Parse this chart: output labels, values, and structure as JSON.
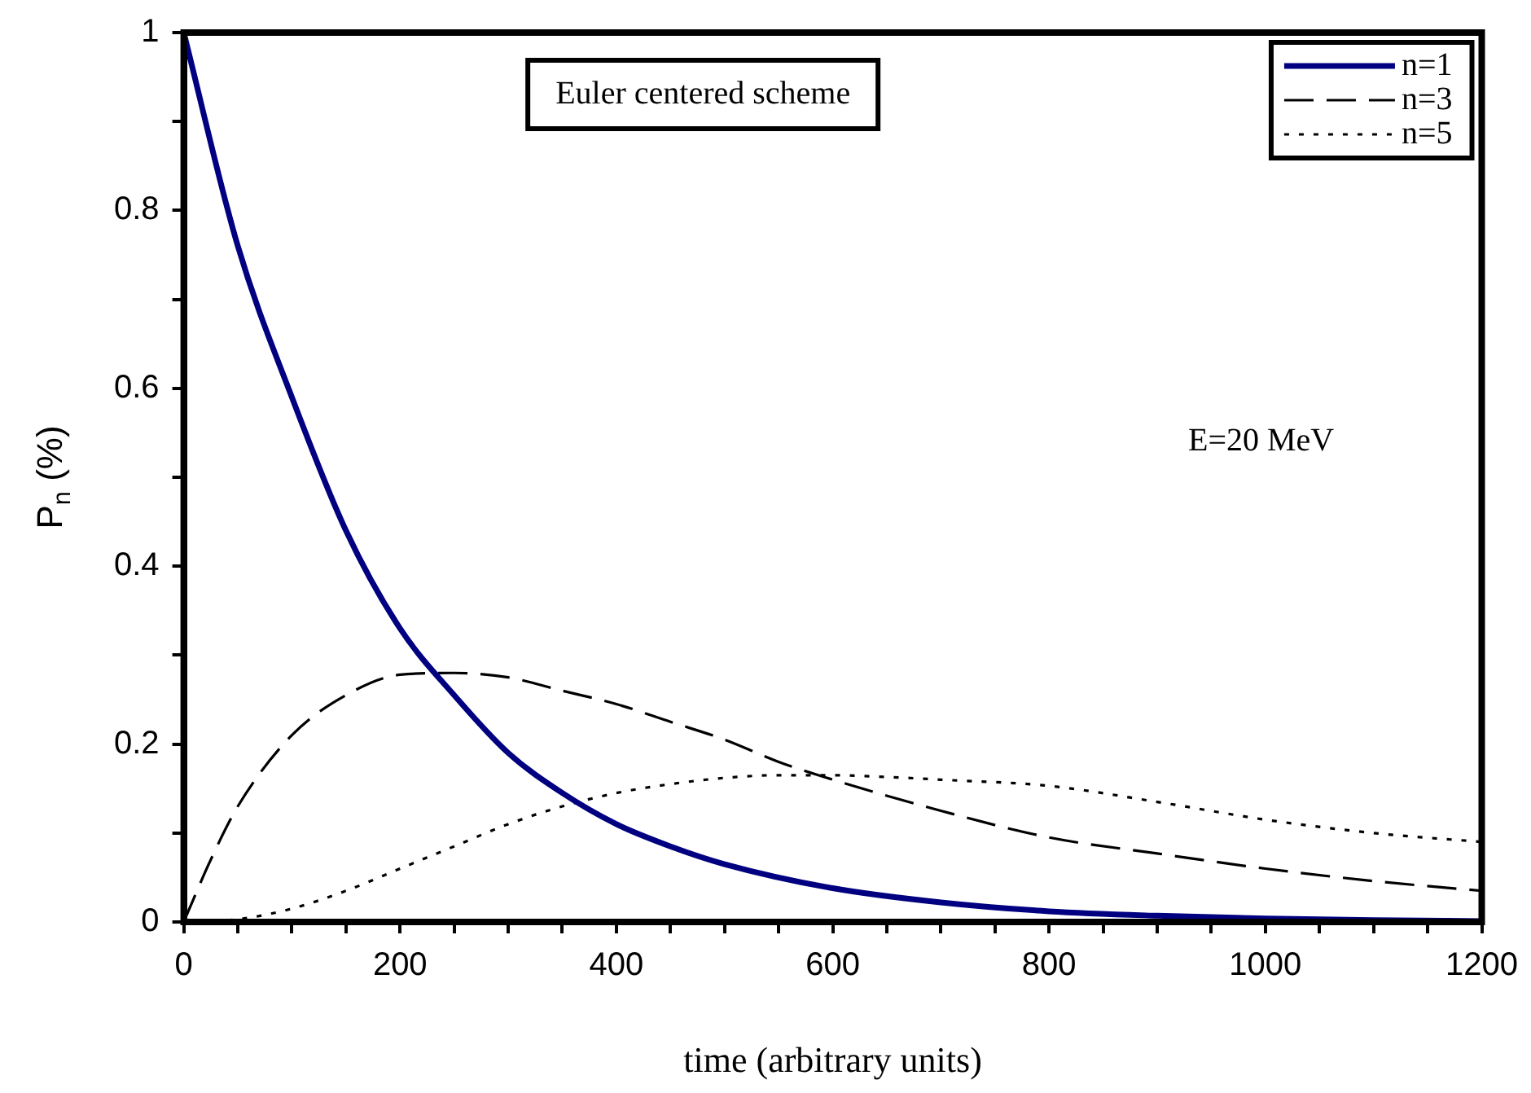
{
  "chart_data": {
    "type": "line",
    "xlabel": "time (arbitrary units)",
    "ylabel": "P$_{n}$ (%)",
    "annotations": [
      "Euler centered scheme",
      "E=20 MeV"
    ],
    "xlim": [
      0,
      1200
    ],
    "xticks": [
      0,
      {
        "value": 50,
        "label": null
      },
      {
        "value": 100,
        "label": null
      },
      {
        "value": 150,
        "label": null
      },
      200,
      {
        "value": 250,
        "label": null
      },
      {
        "value": 300,
        "label": null
      },
      {
        "value": 350,
        "label": null
      },
      400,
      {
        "value": 450,
        "label": null
      },
      {
        "value": 500,
        "label": null
      },
      {
        "value": 550,
        "label": null
      },
      600,
      {
        "value": 650,
        "label": null
      },
      {
        "value": 700,
        "label": null
      },
      {
        "value": 750,
        "label": null
      },
      800,
      {
        "value": 850,
        "label": null
      },
      {
        "value": 900,
        "label": null
      },
      {
        "value": 950,
        "label": null
      },
      1000,
      {
        "value": 1050,
        "label": null
      },
      {
        "value": 1100,
        "label": null
      },
      {
        "value": 1150,
        "label": null
      },
      1200
    ],
    "ylim": [
      0,
      1
    ],
    "yticks": [
      0,
      {
        "value": 0.1,
        "label": null
      },
      0.2,
      {
        "value": 0.3,
        "label": null
      },
      0.4,
      {
        "value": 0.5,
        "label": null
      },
      0.6,
      {
        "value": 0.7,
        "label": null
      },
      0.8,
      {
        "value": 0.9,
        "label": null
      },
      1
    ],
    "grid": false,
    "legend": "top right",
    "marker": "none",
    "series": [
      {
        "name": "n=1",
        "color": "#000080",
        "line_style": "solid",
        "x": [
          0,
          50,
          100,
          150,
          200,
          250,
          300,
          350,
          400,
          450,
          500,
          600,
          700,
          800,
          900,
          1000,
          1100,
          1200
        ],
        "values": [
          1,
          0.76,
          0.59,
          0.44,
          0.33,
          0.255,
          0.19,
          0.145,
          0.11,
          0.085,
          0.065,
          0.038,
          0.022,
          0.012,
          0.007,
          0.004,
          0.002,
          0.001
        ]
      },
      {
        "name": "n=3",
        "color": "#000000",
        "line_style": "dashed",
        "x": [
          0,
          25,
          50,
          100,
          150,
          200,
          250,
          300,
          350,
          400,
          450,
          500,
          550,
          600,
          700,
          800,
          900,
          1000,
          1100,
          1200
        ],
        "values": [
          0,
          0.07,
          0.13,
          0.21,
          0.255,
          0.278,
          0.28,
          0.275,
          0.26,
          0.245,
          0.225,
          0.205,
          0.18,
          0.16,
          0.125,
          0.095,
          0.077,
          0.06,
          0.046,
          0.035
        ]
      },
      {
        "name": "n=5",
        "color": "#000000",
        "line_style": "dotted",
        "x": [
          0,
          50,
          100,
          150,
          200,
          250,
          300,
          350,
          400,
          450,
          500,
          550,
          600,
          650,
          700,
          800,
          900,
          1000,
          1100,
          1200
        ],
        "values": [
          0,
          0.003,
          0.015,
          0.035,
          0.06,
          0.085,
          0.11,
          0.13,
          0.145,
          0.155,
          0.162,
          0.165,
          0.165,
          0.163,
          0.16,
          0.153,
          0.135,
          0.115,
          0.1,
          0.09
        ]
      }
    ]
  }
}
